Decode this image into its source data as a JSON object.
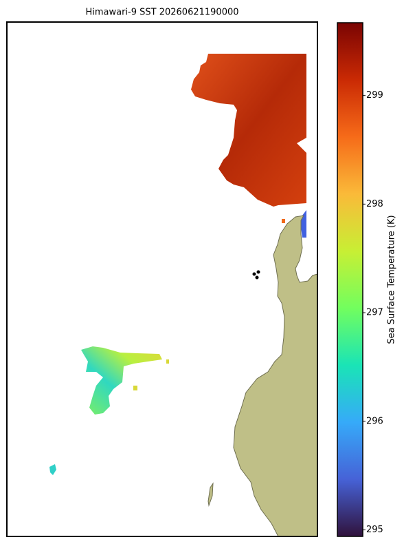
{
  "chart_data": {
    "type": "map",
    "title": "Himawari-9 SST 20260621190000",
    "colorbar": {
      "label": "Sea Surface Temperature (K)",
      "lim": [
        294.94,
        299.67
      ],
      "ticks": [
        295,
        296,
        297,
        298,
        299
      ],
      "colors": [
        "#30123b",
        "#4662d7",
        "#36aaf9",
        "#1ae4b6",
        "#72fe5e",
        "#c8ef34",
        "#faba39",
        "#f66b19",
        "#ca2a04",
        "#7a0403"
      ]
    }
  }
}
